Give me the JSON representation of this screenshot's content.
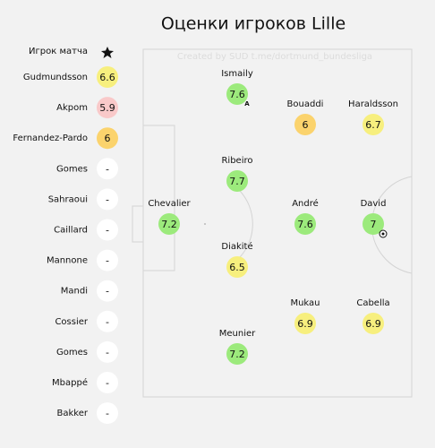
{
  "title": "Оценки игроков Lille",
  "watermark": "Created by SUD t.me/dortmund_bundesliga",
  "motm_label": "Игрок матча",
  "captain_mark": "A",
  "list": [
    {
      "name": "Gudmundsson",
      "rating": 6.6,
      "color": "#f7ef7e"
    },
    {
      "name": "Akpom",
      "rating": 5.9,
      "color": "#f9c9c9"
    },
    {
      "name": "Fernandez-Pardo",
      "rating": 6,
      "color": "#fbd36d"
    },
    {
      "name": "Gomes",
      "rating": "-",
      "color": "#ffffff"
    },
    {
      "name": "Sahraoui",
      "rating": "-",
      "color": "#ffffff"
    },
    {
      "name": "Caillard",
      "rating": "-",
      "color": "#ffffff"
    },
    {
      "name": "Mannone",
      "rating": "-",
      "color": "#ffffff"
    },
    {
      "name": "Mandi",
      "rating": "-",
      "color": "#ffffff"
    },
    {
      "name": "Cossier",
      "rating": "-",
      "color": "#ffffff"
    },
    {
      "name": "Gomes",
      "rating": "-",
      "color": "#ffffff"
    },
    {
      "name": "Mbappé",
      "rating": "-",
      "color": "#ffffff"
    },
    {
      "name": "Bakker",
      "rating": "-",
      "color": "#ffffff"
    }
  ],
  "pitch": [
    {
      "name": "Chevalier",
      "rating": 7.2,
      "color": "#9cea7c"
    },
    {
      "name": "Ismaily",
      "rating": 7.6,
      "color": "#9cea7c"
    },
    {
      "name": "Ribeiro",
      "rating": 7.7,
      "color": "#9cea7c"
    },
    {
      "name": "Diakité",
      "rating": 6.5,
      "color": "#f7ef7e"
    },
    {
      "name": "Meunier",
      "rating": 7.2,
      "color": "#9cea7c"
    },
    {
      "name": "Bouaddi",
      "rating": 6,
      "color": "#fbd36d"
    },
    {
      "name": "André",
      "rating": 7.6,
      "color": "#9cea7c"
    },
    {
      "name": "Mukau",
      "rating": 6.9,
      "color": "#f7ef7e"
    },
    {
      "name": "Haraldsson",
      "rating": 6.7,
      "color": "#f7ef7e"
    },
    {
      "name": "David",
      "rating": 7,
      "color": "#9cea7c"
    },
    {
      "name": "Cabella",
      "rating": 6.9,
      "color": "#f7ef7e"
    }
  ]
}
